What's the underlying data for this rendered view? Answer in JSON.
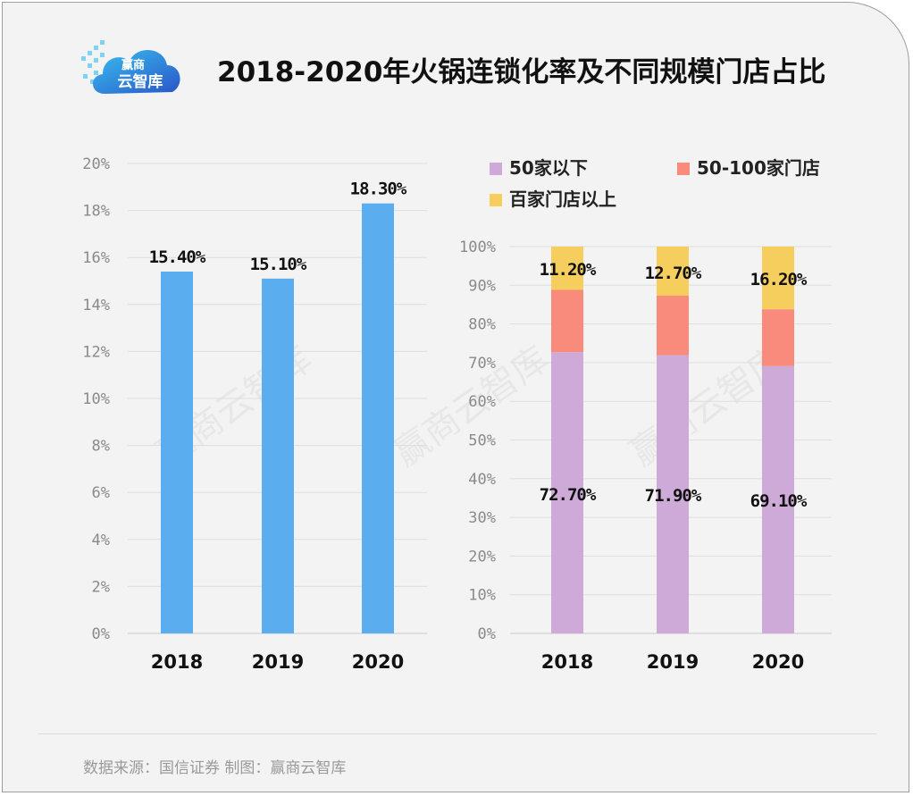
{
  "logo": {
    "line1": "赢商",
    "line2": "云智库"
  },
  "title": "2018-2020年火锅连锁化率及不同规模门店占比",
  "watermark": "赢商云智库",
  "footer": "数据来源：国信证券   制图：赢商云智库",
  "colors": {
    "bar_blue": "#5aaef0",
    "purple": "#cdaad8",
    "salmon": "#f88b7c",
    "yellow": "#f5ce5e"
  },
  "chart_data": [
    {
      "type": "bar",
      "categories": [
        "2018",
        "2019",
        "2020"
      ],
      "values": [
        15.4,
        15.1,
        18.3
      ],
      "data_labels": [
        "15.40%",
        "15.10%",
        "18.30%"
      ],
      "yticks": [
        "0%",
        "2%",
        "4%",
        "6%",
        "8%",
        "10%",
        "12%",
        "14%",
        "16%",
        "18%",
        "20%"
      ],
      "ylim": [
        0,
        20
      ],
      "grid": true
    },
    {
      "type": "bar",
      "stacked": true,
      "categories": [
        "2018",
        "2019",
        "2020"
      ],
      "series": [
        {
          "name": "50家以下",
          "values": [
            72.7,
            71.9,
            69.1
          ],
          "labels": [
            "72.70%",
            "71.90%",
            "69.10%"
          ],
          "color": "#cdaad8"
        },
        {
          "name": "50-100家门店",
          "values": [
            16.1,
            15.4,
            14.7
          ],
          "labels": [
            "",
            "",
            ""
          ],
          "color": "#f88b7c"
        },
        {
          "name": "百家门店以上",
          "values": [
            11.2,
            12.7,
            16.2
          ],
          "labels": [
            "11.20%",
            "12.70%",
            "16.20%"
          ],
          "color": "#f5ce5e"
        }
      ],
      "yticks": [
        "0%",
        "10%",
        "20%",
        "30%",
        "40%",
        "50%",
        "60%",
        "70%",
        "80%",
        "90%",
        "100%"
      ],
      "ylim": [
        0,
        100
      ],
      "legend": "top",
      "grid": true
    }
  ]
}
